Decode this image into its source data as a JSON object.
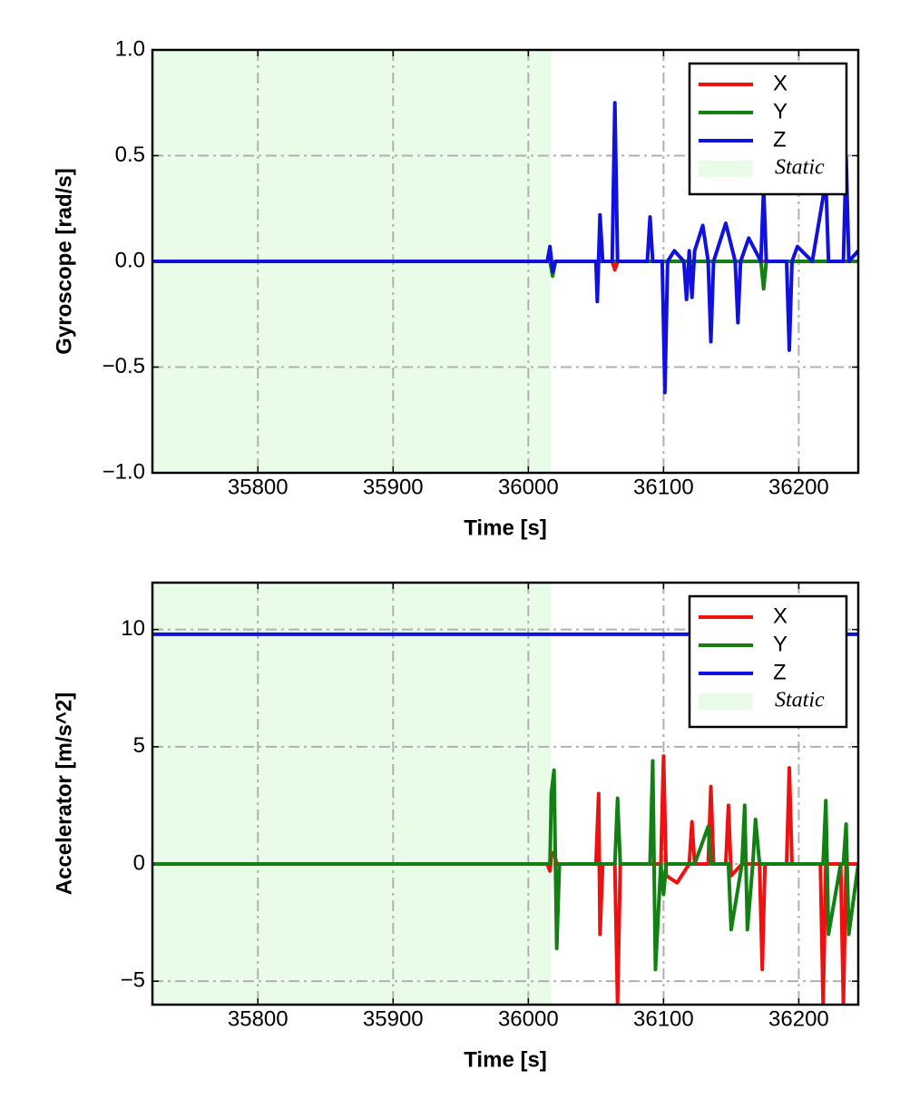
{
  "chart_data": [
    {
      "type": "line",
      "xlabel": "Time [s]",
      "ylabel": "Gyroscope [rad/s]",
      "xlim": [
        35722,
        36244
      ],
      "ylim": [
        -1,
        1
      ],
      "xticks": [
        35800,
        35900,
        36000,
        36100,
        36200
      ],
      "yticks": [
        {
          "value": -1,
          "label": "−1.0"
        },
        {
          "value": -0.5,
          "label": "−0.5"
        },
        {
          "value": 0,
          "label": "0.0"
        },
        {
          "value": 0.5,
          "label": "0.5"
        },
        {
          "value": 1,
          "label": "1.0"
        }
      ],
      "grid": true,
      "legend": "upper right",
      "static_span": [
        35722,
        36017
      ],
      "static_label": "Static",
      "static_color": "#e8fce8",
      "x": [
        35722,
        36014,
        36016,
        36018,
        36020,
        36050,
        36051,
        36053,
        36055,
        36062,
        36064,
        36066,
        36088,
        36090,
        36092,
        36099,
        36101,
        36103,
        36108,
        36115,
        36117,
        36119,
        36121,
        36123,
        36129,
        36133,
        36135,
        36137,
        36141,
        36146,
        36153,
        36155,
        36157,
        36163,
        36172,
        36174,
        36176,
        36191,
        36193,
        36195,
        36199,
        36210,
        36220,
        36222,
        36233,
        36235,
        36237,
        36244
      ],
      "series": [
        {
          "name": "X",
          "color": "#ee1111",
          "values": [
            0,
            0,
            0.04,
            -0.03,
            0,
            0,
            0,
            0,
            0,
            0,
            -0.04,
            0,
            0,
            0,
            0,
            0,
            0,
            0,
            0,
            0,
            0,
            0,
            0,
            0,
            0,
            0,
            0,
            0,
            0,
            0,
            0,
            0,
            0,
            0,
            0,
            0,
            0,
            0,
            0,
            0,
            0,
            0,
            0,
            0,
            0,
            0,
            0,
            0
          ]
        },
        {
          "name": "Y",
          "color": "#138013",
          "values": [
            0,
            0,
            0,
            -0.07,
            0,
            0,
            0,
            0,
            0,
            0,
            0,
            0,
            0,
            0,
            0,
            0,
            0,
            0,
            0,
            0,
            0,
            0,
            0,
            0,
            0,
            0,
            0,
            0,
            0,
            0,
            0,
            0,
            0,
            0,
            0,
            -0.13,
            0,
            0,
            0,
            0,
            0,
            0,
            0,
            0,
            0,
            0,
            0,
            0
          ]
        },
        {
          "name": "Z",
          "color": "#1111dd",
          "values": [
            0,
            0,
            0.07,
            -0.05,
            0,
            0,
            -0.19,
            0.22,
            0,
            0,
            0.75,
            0,
            0,
            0.21,
            0,
            0,
            -0.62,
            0,
            0.05,
            0,
            -0.18,
            0.05,
            -0.17,
            0.05,
            0.17,
            0,
            -0.38,
            0,
            0.08,
            0.18,
            0,
            -0.29,
            0,
            0.11,
            0,
            0.35,
            0,
            0,
            -0.42,
            0,
            0.07,
            0,
            0.38,
            0,
            0,
            0.5,
            0,
            0.05
          ]
        }
      ]
    },
    {
      "type": "line",
      "xlabel": "Time [s]",
      "ylabel": "Accelerator [m/s^2]",
      "xlim": [
        35722,
        36244
      ],
      "ylim": [
        -6,
        12
      ],
      "xticks": [
        35800,
        35900,
        36000,
        36100,
        36200
      ],
      "yticks": [
        {
          "value": -5,
          "label": "−5"
        },
        0,
        5,
        10
      ],
      "grid": true,
      "legend": "upper right",
      "static_span": [
        35722,
        36017
      ],
      "static_label": "Static",
      "static_color": "#e8fce8",
      "x": [
        35722,
        36014,
        36016,
        36017,
        36019,
        36021,
        36023,
        36050,
        36052,
        36053,
        36055,
        36064,
        36066,
        36068,
        36090,
        36092,
        36094,
        36098,
        36100,
        36102,
        36110,
        36119,
        36121,
        36123,
        36133,
        36135,
        36137,
        36146,
        36148,
        36150,
        36158,
        36160,
        36162,
        36166,
        36168,
        36171,
        36173,
        36175,
        36191,
        36193,
        36195,
        36216,
        36218,
        36220,
        36222,
        36231,
        36233,
        36235,
        36237,
        36244
      ],
      "series": [
        {
          "name": "X",
          "color": "#ee1111",
          "values": [
            0,
            0,
            -0.3,
            0.3,
            0.5,
            0,
            0,
            0,
            3,
            -3,
            0,
            0,
            -6,
            0,
            0,
            0,
            0,
            0,
            4.6,
            -0.5,
            -0.8,
            0,
            1.8,
            0,
            0,
            3.3,
            0,
            0,
            2.5,
            -0.5,
            0,
            0,
            0,
            0,
            0,
            0,
            -4.5,
            0,
            0,
            4.1,
            0,
            0,
            -6,
            0,
            0,
            0,
            -6,
            0,
            0,
            0
          ]
        },
        {
          "name": "Y",
          "color": "#138013",
          "values": [
            0,
            0,
            0,
            3,
            4,
            -3.6,
            0,
            0,
            0,
            0,
            0,
            0,
            2.8,
            0,
            0,
            4.4,
            -4.5,
            0,
            -1.3,
            0,
            0,
            0,
            0,
            0,
            1.6,
            0,
            0,
            0,
            0,
            -2.8,
            0,
            2.5,
            -2.8,
            0,
            1.9,
            0,
            0,
            0,
            0,
            0,
            0,
            0,
            0,
            2.7,
            -3,
            0,
            0,
            1.7,
            -3,
            0
          ]
        },
        {
          "name": "Z",
          "color": "#1111dd",
          "values": [
            9.8,
            9.8,
            9.8,
            9.8,
            9.8,
            9.8,
            9.8,
            9.8,
            9.8,
            9.8,
            9.8,
            9.8,
            9.8,
            9.8,
            9.8,
            9.8,
            9.8,
            9.8,
            9.8,
            9.8,
            9.8,
            9.8,
            9.8,
            9.8,
            9.8,
            9.8,
            9.8,
            9.8,
            9.8,
            9.8,
            9.8,
            9.8,
            9.8,
            9.8,
            9.8,
            9.8,
            9.8,
            9.8,
            9.8,
            9.8,
            9.8,
            9.8,
            9.8,
            9.8,
            9.8,
            9.8,
            9.8,
            9.8,
            9.8,
            9.8
          ]
        }
      ]
    }
  ]
}
